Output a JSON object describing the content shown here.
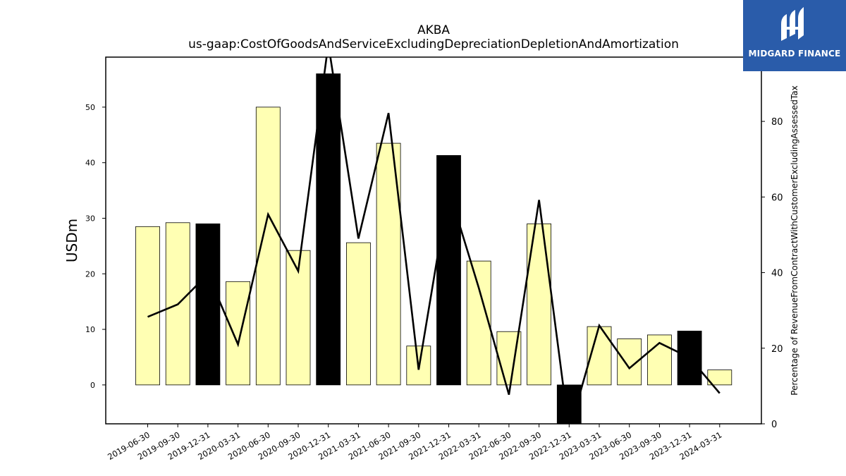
{
  "chart_data": {
    "type": "bar",
    "title": "AKBA",
    "subtitle": "us-gaap:CostOfGoodsAndServiceExcludingDepreciationDepletionAndAmortization",
    "ylabel": "USDm",
    "y2label": "Percentage of RevenueFromContractWithCustomerExcludingAssessedTax",
    "ylim": [
      -7,
      59
    ],
    "y2lim": [
      0,
      97
    ],
    "yticks": [
      0,
      10,
      20,
      30,
      40,
      50
    ],
    "y2ticks": [
      0,
      20,
      40,
      60,
      80
    ],
    "categories": [
      "2019-06-30",
      "2019-09-30",
      "2019-12-31",
      "2020-03-31",
      "2020-06-30",
      "2020-09-30",
      "2020-12-31",
      "2021-03-31",
      "2021-06-30",
      "2021-09-30",
      "2021-12-31",
      "2022-03-31",
      "2022-06-30",
      "2022-09-30",
      "2022-12-31",
      "2023-03-31",
      "2023-06-30",
      "2023-09-30",
      "2023-12-31",
      "2024-03-31"
    ],
    "series": [
      {
        "values": [
          28.5,
          29.2,
          29.0,
          18.6,
          50.0,
          24.2,
          56.0,
          25.6,
          43.5,
          7.0,
          41.3,
          22.3,
          9.6,
          29.0,
          -7.0,
          10.5,
          8.3,
          9.0,
          9.7,
          2.7
        ],
        "highlight": [
          false,
          false,
          true,
          false,
          false,
          false,
          true,
          false,
          false,
          false,
          true,
          false,
          false,
          false,
          true,
          false,
          false,
          false,
          true,
          false
        ]
      },
      {
        "values": [
          28.3,
          31.6,
          39.6,
          21.0,
          55.4,
          40.4,
          100.5,
          49.0,
          82.2,
          14.3,
          62.0,
          35.9,
          7.7,
          59.2,
          -2.0,
          26.0,
          14.7,
          21.4,
          17.5,
          8.1
        ]
      }
    ],
    "colors": {
      "bar": "#ffffb3",
      "highlight_bar": "#000000",
      "line": "#000000"
    },
    "grid": false
  },
  "logo": {
    "text": "MIDGARD FINANCE",
    "background": "#2a5caa"
  }
}
